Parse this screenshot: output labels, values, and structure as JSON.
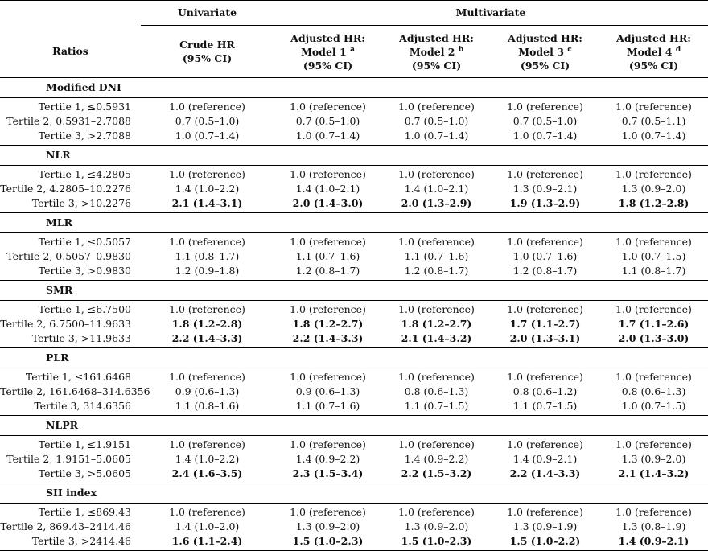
{
  "header": {
    "univariate": "Univariate",
    "multivariate": "Multivariate",
    "ratios": "Ratios",
    "columns": [
      {
        "line1": "Crude HR",
        "sup": "",
        "line2": "(95% CI)"
      },
      {
        "line1": "Adjusted HR:",
        "line_b": "Model 1",
        "sup": "a",
        "line2": "(95% CI)"
      },
      {
        "line1": "Adjusted HR:",
        "line_b": "Model 2",
        "sup": "b",
        "line2": "(95% CI)"
      },
      {
        "line1": "Adjusted HR:",
        "line_b": "Model 3",
        "sup": "c",
        "line2": "(95% CI)"
      },
      {
        "line1": "Adjusted HR:",
        "line_b": "Model 4",
        "sup": "d",
        "line2": "(95% CI)"
      }
    ]
  },
  "sections": [
    {
      "title": "Modified DNI",
      "rows": [
        {
          "label": "Tertile 1, ≤0.5931",
          "values": [
            "1.0 (reference)",
            "1.0 (reference)",
            "1.0 (reference)",
            "1.0 (reference)",
            "1.0 (reference)"
          ],
          "bold": [
            false,
            false,
            false,
            false,
            false
          ]
        },
        {
          "label": "Tertile 2, 0.5931–2.7088",
          "values": [
            "0.7 (0.5–1.0)",
            "0.7 (0.5–1.0)",
            "0.7 (0.5–1.0)",
            "0.7 (0.5–1.0)",
            "0.7 (0.5–1.1)"
          ],
          "bold": [
            false,
            false,
            false,
            false,
            false
          ]
        },
        {
          "label": "Tertile 3, >2.7088",
          "values": [
            "1.0 (0.7–1.4)",
            "1.0 (0.7–1.4)",
            "1.0 (0.7–1.4)",
            "1.0 (0.7–1.4)",
            "1.0 (0.7–1.4)"
          ],
          "bold": [
            false,
            false,
            false,
            false,
            false
          ]
        }
      ]
    },
    {
      "title": "NLR",
      "rows": [
        {
          "label": "Tertile 1, ≤4.2805",
          "values": [
            "1.0 (reference)",
            "1.0 (reference)",
            "1.0 (reference)",
            "1.0 (reference)",
            "1.0 (reference)"
          ],
          "bold": [
            false,
            false,
            false,
            false,
            false
          ]
        },
        {
          "label": "Tertile 2, 4.2805–10.2276",
          "values": [
            "1.4 (1.0–2.2)",
            "1.4 (1.0–2.1)",
            "1.4 (1.0–2.1)",
            "1.3 (0.9–2.1)",
            "1.3 (0.9–2.0)"
          ],
          "bold": [
            false,
            false,
            false,
            false,
            false
          ]
        },
        {
          "label": "Tertile 3, >10.2276",
          "values": [
            "2.1 (1.4–3.1)",
            "2.0 (1.4–3.0)",
            "2.0 (1.3–2.9)",
            "1.9 (1.3–2.9)",
            "1.8 (1.2–2.8)"
          ],
          "bold": [
            true,
            true,
            true,
            true,
            true
          ]
        }
      ]
    },
    {
      "title": "MLR",
      "rows": [
        {
          "label": "Tertile 1, ≤0.5057",
          "values": [
            "1.0 (reference)",
            "1.0 (reference)",
            "1.0 (reference)",
            "1.0 (reference)",
            "1.0 (reference)"
          ],
          "bold": [
            false,
            false,
            false,
            false,
            false
          ]
        },
        {
          "label": "Tertile 2, 0.5057–0.9830",
          "values": [
            "1.1 (0.8–1.7)",
            "1.1 (0.7–1.6)",
            "1.1 (0.7–1.6)",
            "1.0 (0.7–1.6)",
            "1.0 (0.7–1.5)"
          ],
          "bold": [
            false,
            false,
            false,
            false,
            false
          ]
        },
        {
          "label": "Tertile 3, >0.9830",
          "values": [
            "1.2 (0.9–1.8)",
            "1.2 (0.8–1.7)",
            "1.2 (0.8–1.7)",
            "1.2 (0.8–1.7)",
            "1.1 (0.8–1.7)"
          ],
          "bold": [
            false,
            false,
            false,
            false,
            false
          ]
        }
      ]
    },
    {
      "title": "SMR",
      "rows": [
        {
          "label": "Tertile 1, ≤6.7500",
          "values": [
            "1.0 (reference)",
            "1.0 (reference)",
            "1.0 (reference)",
            "1.0 (reference)",
            "1.0 (reference)"
          ],
          "bold": [
            false,
            false,
            false,
            false,
            false
          ]
        },
        {
          "label": "Tertile 2, 6.7500–11.9633",
          "values": [
            "1.8 (1.2–2.8)",
            "1.8 (1.2–2.7)",
            "1.8 (1.2–2.7)",
            "1.7 (1.1–2.7)",
            "1.7 (1.1–2.6)"
          ],
          "bold": [
            true,
            true,
            true,
            true,
            true
          ]
        },
        {
          "label": "Tertile 3, >11.9633",
          "values": [
            "2.2 (1.4–3.3)",
            "2.2 (1.4–3.3)",
            "2.1 (1.4–3.2)",
            "2.0 (1.3–3.1)",
            "2.0 (1.3–3.0)"
          ],
          "bold": [
            true,
            true,
            true,
            true,
            true
          ]
        }
      ]
    },
    {
      "title": "PLR",
      "rows": [
        {
          "label": "Tertile 1, ≤161.6468",
          "values": [
            "1.0 (reference)",
            "1.0 (reference)",
            "1.0 (reference)",
            "1.0 (reference)",
            "1.0 (reference)"
          ],
          "bold": [
            false,
            false,
            false,
            false,
            false
          ]
        },
        {
          "label": "Tertile 2, 161.6468–314.6356",
          "values": [
            "0.9 (0.6–1.3)",
            "0.9 (0.6–1.3)",
            "0.8 (0.6–1.3)",
            "0.8 (0.6–1.2)",
            "0.8 (0.6–1.3)"
          ],
          "bold": [
            false,
            false,
            false,
            false,
            false
          ]
        },
        {
          "label": "Tertile 3, 314.6356",
          "values": [
            "1.1 (0.8–1.6)",
            "1.1 (0.7–1.6)",
            "1.1 (0.7–1.5)",
            "1.1 (0.7–1.5)",
            "1.0 (0.7–1.5)"
          ],
          "bold": [
            false,
            false,
            false,
            false,
            false
          ]
        }
      ]
    },
    {
      "title": "NLPR",
      "rows": [
        {
          "label": "Tertile 1, ≤1.9151",
          "values": [
            "1.0 (reference)",
            "1.0 (reference)",
            "1.0 (reference)",
            "1.0 (reference)",
            "1.0 (reference)"
          ],
          "bold": [
            false,
            false,
            false,
            false,
            false
          ]
        },
        {
          "label": "Tertile 2, 1.9151–5.0605",
          "values": [
            "1.4 (1.0–2.2)",
            "1.4 (0.9–2.2)",
            "1.4 (0.9–2.2)",
            "1.4 (0.9–2.1)",
            "1.3 (0.9–2.0)"
          ],
          "bold": [
            false,
            false,
            false,
            false,
            false
          ]
        },
        {
          "label": "Tertile 3, >5.0605",
          "values": [
            "2.4 (1.6–3.5)",
            "2.3 (1.5–3.4)",
            "2.2 (1.5–3.2)",
            "2.2 (1.4–3.3)",
            "2.1 (1.4–3.2)"
          ],
          "bold": [
            true,
            true,
            true,
            true,
            true
          ]
        }
      ]
    },
    {
      "title": "SII index",
      "rows": [
        {
          "label": "Tertile 1, ≤869.43",
          "values": [
            "1.0 (reference)",
            "1.0 (reference)",
            "1.0 (reference)",
            "1.0 (reference)",
            "1.0 (reference)"
          ],
          "bold": [
            false,
            false,
            false,
            false,
            false
          ]
        },
        {
          "label": "Tertile 2, 869.43–2414.46",
          "values": [
            "1.4 (1.0–2.0)",
            "1.3 (0.9–2.0)",
            "1.3 (0.9–2.0)",
            "1.3 (0.9–1.9)",
            "1.3 (0.8–1.9)"
          ],
          "bold": [
            false,
            false,
            false,
            false,
            false
          ]
        },
        {
          "label": "Tertile 3, >2414.46",
          "values": [
            "1.6 (1.1–2.4)",
            "1.5 (1.0–2.3)",
            "1.5 (1.0–2.3)",
            "1.5 (1.0–2.2)",
            "1.4 (0.9–2.1)"
          ],
          "bold": [
            true,
            true,
            true,
            true,
            true
          ]
        }
      ]
    }
  ]
}
